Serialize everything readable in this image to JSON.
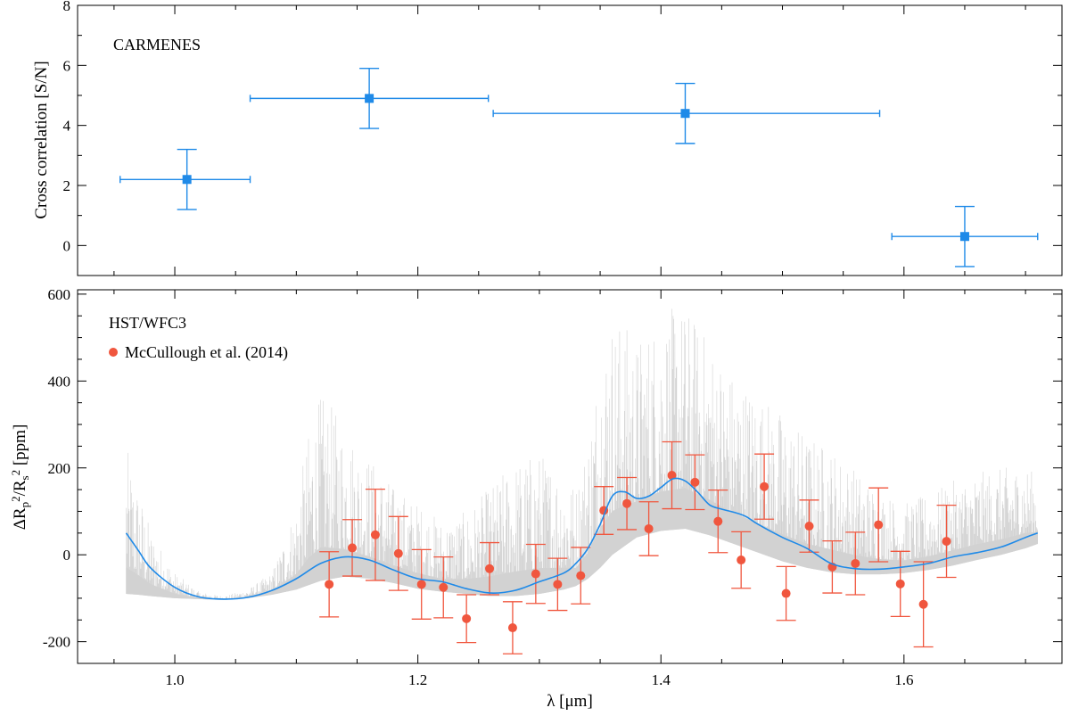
{
  "chart_data": [
    {
      "type": "scatter",
      "panel": "top",
      "annotation": "CARMENES",
      "ylabel": "Cross correlation [S/N]",
      "xlim": [
        0.92,
        1.73
      ],
      "ylim": [
        -1,
        8
      ],
      "yticks": [
        0,
        2,
        4,
        6,
        8
      ],
      "color": "#1f8ae8",
      "series": [
        {
          "points": [
            {
              "x": 1.01,
              "y": 2.2,
              "xlo": 0.955,
              "xhi": 1.062,
              "ylo": 1.2,
              "yhi": 3.2
            },
            {
              "x": 1.16,
              "y": 4.9,
              "xlo": 1.062,
              "xhi": 1.258,
              "ylo": 3.9,
              "yhi": 5.9
            },
            {
              "x": 1.42,
              "y": 4.4,
              "xlo": 1.262,
              "xhi": 1.58,
              "ylo": 3.4,
              "yhi": 5.4
            },
            {
              "x": 1.65,
              "y": 0.3,
              "xlo": 1.59,
              "xhi": 1.71,
              "ylo": -0.7,
              "yhi": 1.3
            }
          ]
        }
      ]
    },
    {
      "type": "scatter",
      "panel": "bottom",
      "annotation": "HST/WFC3",
      "xlabel": "λ [μm]",
      "ylabel_parts": [
        "ΔR",
        "p",
        "2",
        "/R",
        "s",
        "2",
        " [ppm]"
      ],
      "xlim": [
        0.92,
        1.73
      ],
      "ylim": [
        -250,
        610
      ],
      "xticks": [
        1.0,
        1.2,
        1.4,
        1.6
      ],
      "xtick_labels": [
        "1.0",
        "1.2",
        "1.4",
        "1.6"
      ],
      "yticks": [
        -200,
        0,
        200,
        400,
        600
      ],
      "colors": {
        "points": "#f0563e",
        "model": "#1f8ae8",
        "spectrum": "#d2d2d2"
      },
      "legend": {
        "label": "McCullough et al. (2014)",
        "placement": "top-left"
      },
      "series": [
        {
          "name": "McCullough et al. (2014)",
          "x": [
            1.127,
            1.146,
            1.165,
            1.184,
            1.203,
            1.221,
            1.24,
            1.259,
            1.278,
            1.297,
            1.315,
            1.334,
            1.353,
            1.372,
            1.39,
            1.409,
            1.428,
            1.447,
            1.466,
            1.485,
            1.503,
            1.522,
            1.541,
            1.56,
            1.579,
            1.597,
            1.616,
            1.635
          ],
          "y": [
            -68,
            16,
            46,
            3,
            -68,
            -75,
            -147,
            -32,
            -168,
            -44,
            -68,
            -48,
            102,
            118,
            60,
            183,
            167,
            77,
            -12,
            157,
            -89,
            66,
            -28,
            -20,
            69,
            -67,
            -114,
            31
          ],
          "err": [
            75,
            65,
            105,
            85,
            80,
            70,
            55,
            60,
            60,
            68,
            60,
            65,
            55,
            60,
            62,
            77,
            63,
            72,
            65,
            75,
            62,
            60,
            60,
            72,
            85,
            75,
            98,
            83
          ]
        },
        {
          "name": "",
          "kind": "model-line",
          "x": [
            0.96,
            0.97,
            0.98,
            1.0,
            1.02,
            1.04,
            1.06,
            1.08,
            1.1,
            1.12,
            1.14,
            1.16,
            1.18,
            1.2,
            1.22,
            1.24,
            1.26,
            1.28,
            1.3,
            1.32,
            1.33,
            1.34,
            1.35,
            1.36,
            1.37,
            1.38,
            1.39,
            1.4,
            1.41,
            1.42,
            1.43,
            1.44,
            1.45,
            1.46,
            1.47,
            1.48,
            1.5,
            1.52,
            1.54,
            1.56,
            1.58,
            1.6,
            1.62,
            1.64,
            1.66,
            1.68,
            1.7,
            1.71
          ],
          "y": [
            50,
            10,
            -30,
            -75,
            -97,
            -102,
            -98,
            -82,
            -55,
            -20,
            -5,
            -12,
            -35,
            -55,
            -62,
            -78,
            -88,
            -82,
            -62,
            -42,
            -20,
            15,
            70,
            135,
            145,
            130,
            135,
            155,
            175,
            170,
            145,
            115,
            105,
            98,
            88,
            70,
            40,
            15,
            -20,
            -32,
            -33,
            -28,
            -20,
            -5,
            5,
            18,
            40,
            50
          ]
        },
        {
          "name": "",
          "kind": "spectrum-envelope",
          "x": [
            0.96,
            0.97,
            0.98,
            1.0,
            1.02,
            1.04,
            1.06,
            1.08,
            1.1,
            1.11,
            1.12,
            1.13,
            1.14,
            1.16,
            1.18,
            1.2,
            1.22,
            1.24,
            1.26,
            1.28,
            1.3,
            1.32,
            1.33,
            1.34,
            1.35,
            1.36,
            1.37,
            1.38,
            1.4,
            1.42,
            1.44,
            1.46,
            1.48,
            1.5,
            1.52,
            1.54,
            1.56,
            1.58,
            1.6,
            1.62,
            1.64,
            1.66,
            1.68,
            1.7,
            1.71
          ],
          "low": [
            -90,
            -92,
            -95,
            -100,
            -102,
            -104,
            -100,
            -92,
            -80,
            -70,
            -60,
            -55,
            -50,
            -55,
            -65,
            -78,
            -85,
            -90,
            -95,
            -95,
            -90,
            -80,
            -72,
            -55,
            -30,
            0,
            20,
            40,
            55,
            60,
            45,
            25,
            5,
            -15,
            -30,
            -40,
            -45,
            -45,
            -42,
            -35,
            -25,
            -12,
            0,
            15,
            25
          ],
          "high": [
            250,
            160,
            60,
            -40,
            -85,
            -95,
            -80,
            -40,
            120,
            280,
            370,
            340,
            300,
            230,
            160,
            120,
            80,
            100,
            160,
            220,
            240,
            200,
            160,
            280,
            480,
            560,
            540,
            500,
            560,
            580,
            500,
            420,
            380,
            330,
            280,
            250,
            200,
            150,
            120,
            140,
            170,
            190,
            200,
            210,
            180
          ]
        }
      ]
    }
  ]
}
